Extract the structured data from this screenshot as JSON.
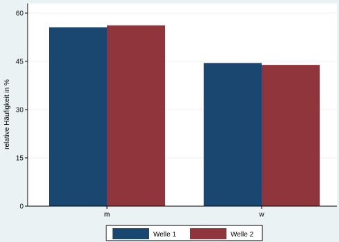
{
  "chart_data": {
    "type": "bar",
    "categories": [
      "m",
      "w"
    ],
    "series": [
      {
        "name": "Welle 1",
        "values": [
          55.6,
          44.5
        ],
        "color": "#1a476f"
      },
      {
        "name": "Welle 2",
        "values": [
          56.2,
          43.9
        ],
        "color": "#90353b"
      }
    ],
    "ylabel": "relative Häufigkeit in %",
    "ylim": [
      0,
      60
    ],
    "yticks": [
      0,
      15,
      30,
      45,
      60
    ],
    "grid": true,
    "legend_position": "bottom"
  }
}
